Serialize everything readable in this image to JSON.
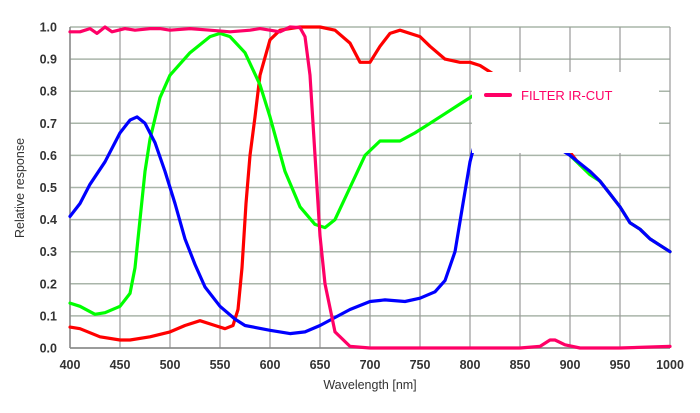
{
  "chart_data": {
    "type": "line",
    "title": "",
    "xlabel": "Wavelength [nm]",
    "ylabel": "Relative response",
    "xlim": [
      400,
      1000
    ],
    "ylim": [
      0,
      1.0
    ],
    "xticks": [
      "400",
      "450",
      "500",
      "550",
      "600",
      "650",
      "700",
      "750",
      "800",
      "850",
      "900",
      "950",
      "1000"
    ],
    "yticks": [
      "0.0",
      "0.1",
      "0.2",
      "0.3",
      "0.4",
      "0.5",
      "0.6",
      "0.7",
      "0.8",
      "0.9",
      "1.0"
    ],
    "grid": true,
    "legend_position": "top-right",
    "legend": [
      {
        "label": "FILTER IR-CUT",
        "color": "#ff0066"
      }
    ],
    "series": [
      {
        "name": "red",
        "color": "#ff0000",
        "x": [
          400,
          410,
          430,
          450,
          460,
          480,
          500,
          515,
          530,
          545,
          555,
          563,
          568,
          572,
          576,
          580,
          585,
          590,
          600,
          610,
          630,
          650,
          665,
          680,
          690,
          700,
          710,
          720,
          730,
          750,
          760,
          775,
          790,
          800,
          810,
          820,
          850,
          880,
          900,
          910,
          920,
          930,
          940,
          950,
          960,
          970,
          980,
          990,
          1000
        ],
        "y": [
          0.065,
          0.06,
          0.035,
          0.025,
          0.025,
          0.035,
          0.05,
          0.07,
          0.085,
          0.07,
          0.06,
          0.07,
          0.12,
          0.25,
          0.45,
          0.6,
          0.72,
          0.85,
          0.96,
          0.99,
          1.0,
          1.0,
          0.99,
          0.95,
          0.89,
          0.89,
          0.94,
          0.98,
          0.99,
          0.97,
          0.94,
          0.9,
          0.89,
          0.89,
          0.88,
          0.86,
          0.8,
          0.7,
          0.61,
          0.57,
          0.55,
          0.52,
          0.48,
          0.44,
          0.39,
          0.37,
          0.34,
          0.32,
          0.3
        ]
      },
      {
        "name": "green",
        "color": "#00ff00",
        "x": [
          400,
          410,
          425,
          435,
          450,
          460,
          465,
          470,
          475,
          480,
          490,
          500,
          520,
          540,
          550,
          560,
          575,
          590,
          600,
          615,
          630,
          645,
          655,
          665,
          680,
          695,
          710,
          730,
          745,
          760,
          775,
          790,
          800,
          805,
          850,
          880,
          900,
          910,
          920,
          930,
          940,
          950,
          960,
          970,
          980,
          990,
          1000
        ],
        "y": [
          0.14,
          0.13,
          0.105,
          0.11,
          0.13,
          0.17,
          0.25,
          0.4,
          0.55,
          0.65,
          0.78,
          0.85,
          0.92,
          0.97,
          0.98,
          0.97,
          0.92,
          0.82,
          0.72,
          0.55,
          0.44,
          0.385,
          0.375,
          0.4,
          0.5,
          0.6,
          0.645,
          0.645,
          0.67,
          0.7,
          0.73,
          0.76,
          0.78,
          0.79,
          0.75,
          0.66,
          0.6,
          0.57,
          0.54,
          0.52,
          0.48,
          0.44,
          0.39,
          0.37,
          0.34,
          0.32,
          0.3
        ]
      },
      {
        "name": "blue",
        "color": "#0000ff",
        "x": [
          400,
          410,
          420,
          435,
          450,
          460,
          467,
          475,
          485,
          495,
          505,
          515,
          525,
          535,
          550,
          565,
          575,
          600,
          620,
          635,
          650,
          665,
          680,
          700,
          715,
          735,
          750,
          765,
          775,
          785,
          793,
          800,
          805,
          850,
          880,
          900,
          910,
          920,
          930,
          940,
          950,
          960,
          970,
          980,
          990,
          1000
        ],
        "y": [
          0.41,
          0.45,
          0.51,
          0.58,
          0.67,
          0.71,
          0.72,
          0.7,
          0.64,
          0.55,
          0.45,
          0.34,
          0.26,
          0.19,
          0.13,
          0.09,
          0.07,
          0.055,
          0.045,
          0.05,
          0.07,
          0.095,
          0.12,
          0.145,
          0.15,
          0.145,
          0.155,
          0.175,
          0.21,
          0.3,
          0.45,
          0.58,
          0.64,
          0.68,
          0.64,
          0.6,
          0.575,
          0.55,
          0.52,
          0.48,
          0.44,
          0.39,
          0.37,
          0.34,
          0.32,
          0.3
        ]
      },
      {
        "name": "FILTER IR-CUT",
        "color": "#ff0066",
        "x": [
          400,
          410,
          420,
          427,
          435,
          442,
          455,
          465,
          480,
          490,
          500,
          520,
          540,
          560,
          580,
          590,
          600,
          610,
          620,
          630,
          635,
          640,
          645,
          650,
          655,
          665,
          680,
          700,
          850,
          870,
          880,
          885,
          895,
          910,
          950,
          1000
        ],
        "y": [
          0.985,
          0.985,
          0.995,
          0.98,
          1.0,
          0.985,
          0.995,
          0.99,
          0.995,
          0.995,
          0.99,
          0.995,
          0.99,
          0.985,
          0.99,
          0.995,
          0.99,
          0.985,
          1.0,
          0.998,
          0.97,
          0.85,
          0.6,
          0.35,
          0.2,
          0.05,
          0.005,
          0.0,
          0.0,
          0.005,
          0.025,
          0.025,
          0.01,
          0.0,
          0.0,
          0.005
        ]
      }
    ]
  }
}
